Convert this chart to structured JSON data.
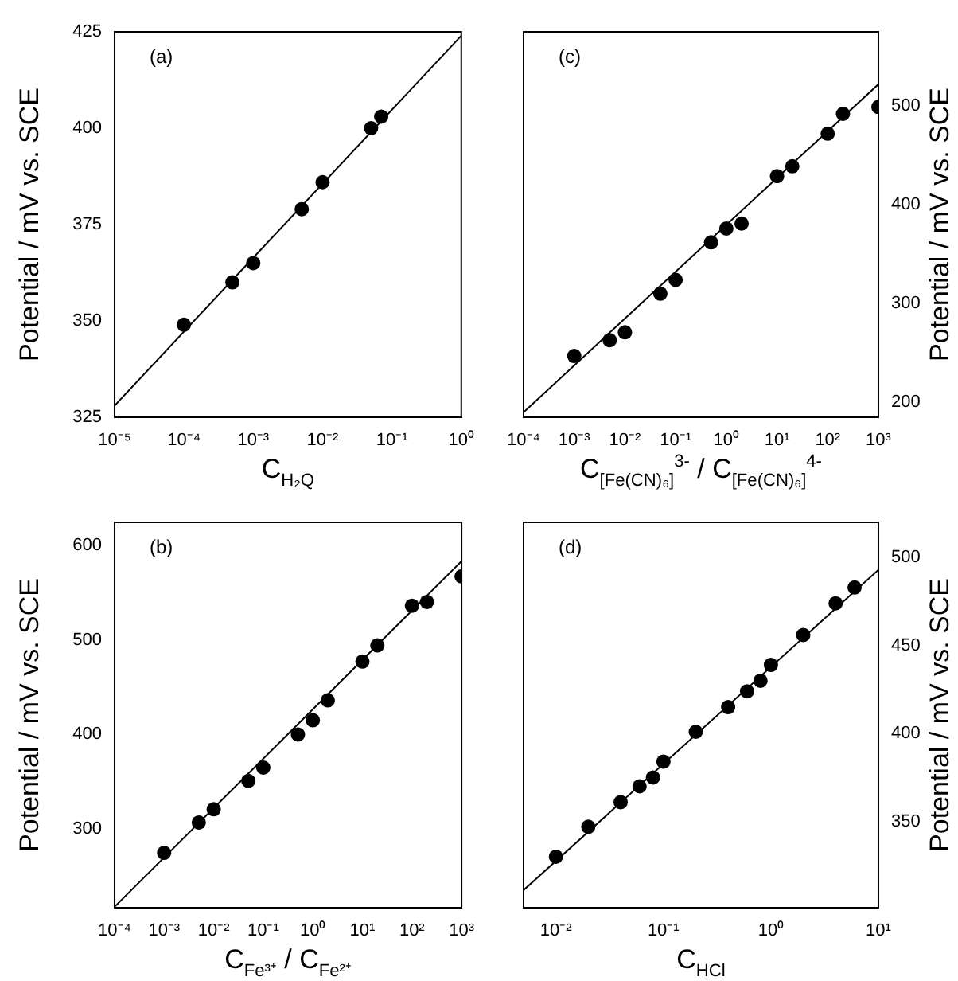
{
  "chart_data": [
    {
      "type": "scatter",
      "xlabel": "C$_{H₂Q}$",
      "ylabel": "Potential / mV vs. SCE",
      "annotations": [
        "(a)"
      ],
      "log": "x",
      "grid": false,
      "legend": false,
      "xlim": [
        1e-05,
        1
      ],
      "xticks": [
        {
          "value": 1e-05,
          "label": "10⁻⁵"
        },
        {
          "value": 0.0001,
          "label": "10⁻⁴"
        },
        {
          "value": 0.001,
          "label": "10⁻³"
        },
        {
          "value": 0.01,
          "label": "10⁻²"
        },
        {
          "value": 0.1,
          "label": "10⁻¹"
        },
        {
          "value": 1,
          "label": "10⁰"
        }
      ],
      "ylim": [
        325,
        425
      ],
      "yticks": [
        325,
        350,
        375,
        400,
        425
      ],
      "series": [
        {
          "marker": "circle",
          "color": "#000000",
          "x": [
            0.0001,
            0.0005,
            0.001,
            0.005,
            0.01,
            0.05,
            0.07
          ],
          "values": [
            349,
            360,
            365,
            379,
            386,
            400,
            403
          ]
        },
        {
          "type": "line",
          "marker": "none",
          "color": "#000000",
          "x": [
            1e-05,
            1
          ],
          "values": [
            328,
            424
          ]
        }
      ]
    },
    {
      "type": "scatter",
      "xlabel": "C$_{[Fe(CN)₆]}$$^{3-}$ / C$_{[Fe(CN)₆]}$$^{4-}$",
      "y2label": "Potential / mV vs. SCE",
      "annotations": [
        "(c)"
      ],
      "log": "x",
      "grid": false,
      "legend": false,
      "xlim": [
        0.0001,
        1000
      ],
      "xticks": [
        {
          "value": 0.0001,
          "label": "10⁻⁴"
        },
        {
          "value": 0.001,
          "label": "10⁻³"
        },
        {
          "value": 0.01,
          "label": "10⁻²"
        },
        {
          "value": 0.1,
          "label": "10⁻¹"
        },
        {
          "value": 1,
          "label": "10⁰"
        },
        {
          "value": 10,
          "label": "10¹"
        },
        {
          "value": 100,
          "label": "10²"
        },
        {
          "value": 1000,
          "label": "10³"
        }
      ],
      "y2lim": [
        185,
        575
      ],
      "y2ticks": [
        200,
        300,
        400,
        500
      ],
      "series": [
        {
          "marker": "circle",
          "axis": "y2",
          "color": "#000000",
          "x": [
            0.001,
            0.005,
            0.01,
            0.05,
            0.1,
            0.5,
            1,
            2,
            10,
            20,
            100,
            200,
            1000
          ],
          "values": [
            247,
            263,
            271,
            310,
            324,
            362,
            376,
            381,
            429,
            439,
            472,
            492,
            499
          ]
        },
        {
          "type": "line",
          "marker": "none",
          "axis": "y2",
          "color": "#000000",
          "x": [
            0.0001,
            1000
          ],
          "values": [
            190,
            522
          ]
        }
      ]
    },
    {
      "type": "scatter",
      "xlabel": "C$_{Fe³⁺}$ / C$_{Fe²⁺}$",
      "ylabel": "Potential / mV vs. SCE",
      "annotations": [
        "(b)"
      ],
      "log": "x",
      "grid": false,
      "legend": false,
      "xlim": [
        0.0001,
        1000
      ],
      "xticks": [
        {
          "value": 0.0001,
          "label": "10⁻⁴"
        },
        {
          "value": 0.001,
          "label": "10⁻³"
        },
        {
          "value": 0.01,
          "label": "10⁻²"
        },
        {
          "value": 0.1,
          "label": "10⁻¹"
        },
        {
          "value": 1,
          "label": "10⁰"
        },
        {
          "value": 10,
          "label": "10¹"
        },
        {
          "value": 100,
          "label": "10²"
        },
        {
          "value": 1000,
          "label": "10³"
        }
      ],
      "ylim": [
        217,
        624
      ],
      "yticks": [
        300,
        400,
        500,
        600
      ],
      "series": [
        {
          "marker": "circle",
          "color": "#000000",
          "x": [
            0.001,
            0.005,
            0.01,
            0.05,
            0.1,
            0.5,
            1,
            2,
            10,
            20,
            100,
            200,
            1000
          ],
          "values": [
            275,
            307,
            321,
            351,
            365,
            400,
            415,
            436,
            477,
            494,
            536,
            540,
            567
          ]
        },
        {
          "type": "line",
          "marker": "none",
          "color": "#000000",
          "x": [
            0.0001,
            1000
          ],
          "values": [
            218,
            583
          ]
        }
      ]
    },
    {
      "type": "scatter",
      "xlabel": "C$_{HCl}$",
      "y2label": "Potential / mV vs. SCE",
      "annotations": [
        "(d)"
      ],
      "log": "x",
      "grid": false,
      "legend": false,
      "xlim": [
        0.005,
        10
      ],
      "xticks": [
        {
          "value": 0.01,
          "label": "10⁻²"
        },
        {
          "value": 0.1,
          "label": "10⁻¹"
        },
        {
          "value": 1,
          "label": "10⁰"
        },
        {
          "value": 10,
          "label": "10¹"
        }
      ],
      "y2lim": [
        301,
        520
      ],
      "y2ticks": [
        350,
        400,
        450,
        500
      ],
      "series": [
        {
          "marker": "circle",
          "axis": "y2",
          "color": "#000000",
          "x": [
            0.01,
            0.02,
            0.04,
            0.06,
            0.08,
            0.1,
            0.2,
            0.4,
            0.6,
            0.8,
            1,
            2,
            4,
            6
          ],
          "values": [
            330,
            347,
            361,
            370,
            375,
            384,
            401,
            415,
            424,
            430,
            439,
            456,
            474,
            483
          ]
        },
        {
          "type": "line",
          "marker": "none",
          "axis": "y2",
          "color": "#000000",
          "x": [
            0.005,
            10
          ],
          "values": [
            311,
            493
          ]
        }
      ]
    }
  ]
}
